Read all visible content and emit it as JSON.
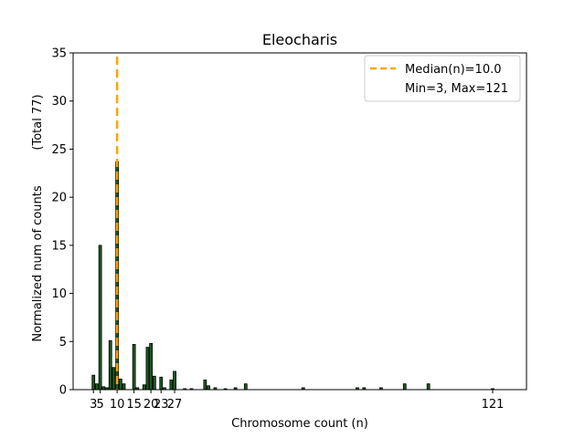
{
  "chart_data": {
    "type": "bar",
    "title": "Eleocharis",
    "xlabel": "Chromosome count (n)",
    "ylabel": "Normalized num of counts",
    "ylabel_secondary": "(Total 77)",
    "xlim": [
      -3,
      131
    ],
    "ylim": [
      0,
      35
    ],
    "yticks": [
      0,
      5,
      10,
      15,
      20,
      25,
      30,
      35
    ],
    "xticks": [
      {
        "value": 3,
        "label": "3"
      },
      {
        "value": 5,
        "label": "5"
      },
      {
        "value": 10,
        "label": "10"
      },
      {
        "value": 15,
        "label": "15"
      },
      {
        "value": 20,
        "label": "20"
      },
      {
        "value": 23,
        "label": "23"
      },
      {
        "value": 27,
        "label": "27"
      },
      {
        "value": 121,
        "label": "121"
      }
    ],
    "bar_color": "#1b5e20",
    "bar_edge_color": "#000000",
    "median_color": "#ffa500",
    "median": 10.0,
    "bars": [
      {
        "x": 3,
        "y": 1.5
      },
      {
        "x": 4,
        "y": 0.6
      },
      {
        "x": 5,
        "y": 15.0
      },
      {
        "x": 6,
        "y": 0.3
      },
      {
        "x": 7,
        "y": 0.2
      },
      {
        "x": 8,
        "y": 5.1
      },
      {
        "x": 9,
        "y": 2.3
      },
      {
        "x": 10,
        "y": 23.7
      },
      {
        "x": 11,
        "y": 1.1
      },
      {
        "x": 12,
        "y": 0.6
      },
      {
        "x": 15,
        "y": 4.7
      },
      {
        "x": 16,
        "y": 0.2
      },
      {
        "x": 18,
        "y": 0.5
      },
      {
        "x": 19,
        "y": 4.4
      },
      {
        "x": 20,
        "y": 4.8
      },
      {
        "x": 21,
        "y": 1.4
      },
      {
        "x": 23,
        "y": 1.3
      },
      {
        "x": 24,
        "y": 0.2
      },
      {
        "x": 26,
        "y": 1.0
      },
      {
        "x": 27,
        "y": 1.9
      },
      {
        "x": 30,
        "y": 0.1
      },
      {
        "x": 32,
        "y": 0.1
      },
      {
        "x": 36,
        "y": 1.0
      },
      {
        "x": 37,
        "y": 0.4
      },
      {
        "x": 39,
        "y": 0.2
      },
      {
        "x": 42,
        "y": 0.1
      },
      {
        "x": 45,
        "y": 0.2
      },
      {
        "x": 48,
        "y": 0.6
      },
      {
        "x": 65,
        "y": 0.2
      },
      {
        "x": 81,
        "y": 0.2
      },
      {
        "x": 83,
        "y": 0.2
      },
      {
        "x": 88,
        "y": 0.2
      },
      {
        "x": 95,
        "y": 0.6
      },
      {
        "x": 102,
        "y": 0.6
      },
      {
        "x": 121,
        "y": 0.1
      }
    ],
    "legend": {
      "position": "upper right",
      "entries": [
        "Median(n)=10.0",
        "Min=3, Max=121"
      ]
    }
  }
}
